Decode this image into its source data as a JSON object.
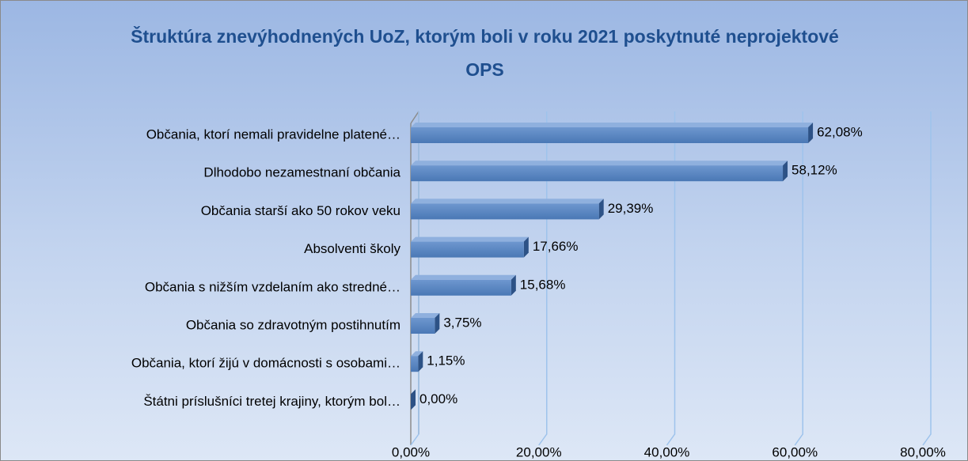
{
  "chart_data": {
    "type": "bar",
    "orientation": "horizontal",
    "title": "Štruktúra znevýhodnených UoZ, ktorým boli v roku 2021 poskytnuté neprojektové OPS",
    "categories": [
      "Občania, ktorí nemali pravidelne platené…",
      "Dlhodobo nezamestnaní občania",
      "Občania starší ako 50 rokov veku",
      "Absolventi školy",
      "Občania s nižším vzdelaním ako stredné…",
      "Občania so zdravotným postihnutím",
      "Občania, ktorí žijú v domácnosti s osobami…",
      "Štátni príslušníci tretej krajiny, ktorým bol…"
    ],
    "values": [
      62.08,
      58.12,
      29.39,
      17.66,
      15.68,
      3.75,
      1.15,
      0.0
    ],
    "value_labels": [
      "62,08%",
      "58,12%",
      "29,39%",
      "17,66%",
      "15,68%",
      "3,75%",
      "1,15%",
      "0,00%"
    ],
    "color": "#4f81bd",
    "xlim": [
      0,
      80
    ],
    "xticks": [
      {
        "value": 0,
        "label": "0,00%"
      },
      {
        "value": 20,
        "label": "20,00%"
      },
      {
        "value": 40,
        "label": "40,00%"
      },
      {
        "value": 60,
        "label": "60,00%"
      },
      {
        "value": 80,
        "label": "80,00%"
      }
    ],
    "grid": true
  }
}
